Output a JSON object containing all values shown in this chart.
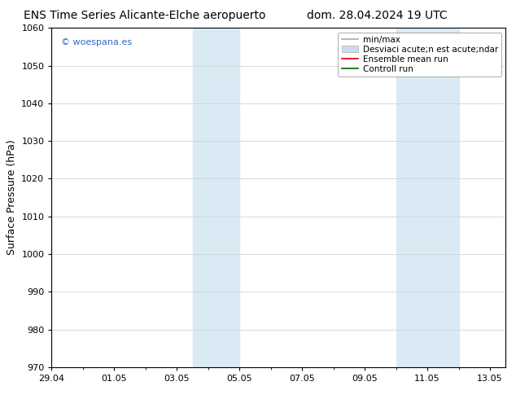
{
  "title_left": "ENS Time Series Alicante-Elche aeropuerto",
  "title_right": "dom. 28.04.2024 19 UTC",
  "ylabel": "Surface Pressure (hPa)",
  "ylim": [
    970,
    1060
  ],
  "yticks": [
    970,
    980,
    990,
    1000,
    1010,
    1020,
    1030,
    1040,
    1050,
    1060
  ],
  "xlim": [
    0,
    14.5
  ],
  "xtick_labels": [
    "29.04",
    "01.05",
    "03.05",
    "05.05",
    "07.05",
    "09.05",
    "11.05",
    "13.05"
  ],
  "xtick_positions": [
    0,
    2,
    4,
    6,
    8,
    10,
    12,
    14
  ],
  "shaded_bands": [
    {
      "x_start": 4.5,
      "x_end": 6.0
    },
    {
      "x_start": 11.0,
      "x_end": 13.0
    }
  ],
  "thin_line_x": 0,
  "background_color": "#ffffff",
  "plot_bg_color": "#ffffff",
  "shade_color": "#daeaf5",
  "watermark": "© woespana.es",
  "watermark_color": "#3366cc",
  "legend_label_1": "min/max",
  "legend_label_2": "Desviaci acute;n est acute;ndar",
  "legend_label_3": "Ensemble mean run",
  "legend_label_4": "Controll run",
  "legend_color_1": "#aaaaaa",
  "legend_color_2": "#c8dded",
  "legend_color_3": "#cc0000",
  "legend_color_4": "#006600",
  "grid_color": "#cccccc",
  "spine_color": "#000000",
  "title_fontsize": 10,
  "axis_label_fontsize": 9,
  "tick_fontsize": 8,
  "legend_fontsize": 7.5
}
